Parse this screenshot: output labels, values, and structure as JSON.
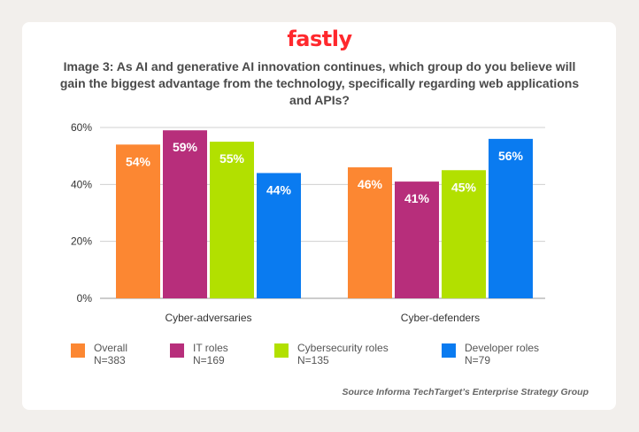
{
  "brand": "fastly",
  "colors": {
    "brand": "#ff282d",
    "overall": "#fc8732",
    "it": "#b72e7b",
    "cyber": "#b2e000",
    "developer": "#0a7bf0"
  },
  "legend": [
    {
      "name": "Overall",
      "n": "N=383"
    },
    {
      "name": "IT roles",
      "n": "N=169"
    },
    {
      "name": "Cybersecurity roles",
      "n": "N=135"
    },
    {
      "name": "Developer roles",
      "n": "N=79"
    }
  ],
  "source": "Source Informa TechTarget’s Enterprise Strategy Group",
  "chart_data": {
    "type": "bar",
    "title": "Image 3: As AI and generative AI innovation continues, which group do you believe will gain the biggest advantage from the technology, specifically regarding web applications and APIs?",
    "xlabel": "",
    "ylabel": "",
    "categories": [
      "Cyber-adversaries",
      "Cyber-defenders"
    ],
    "series": [
      {
        "name": "Overall",
        "values": [
          54,
          46
        ],
        "labels": [
          "54%",
          "46%"
        ]
      },
      {
        "name": "IT roles",
        "values": [
          59,
          41
        ],
        "labels": [
          "59%",
          "41%"
        ]
      },
      {
        "name": "Cybersecurity roles",
        "values": [
          55,
          45
        ],
        "labels": [
          "55%",
          "45%"
        ]
      },
      {
        "name": "Developer roles",
        "values": [
          44,
          56
        ],
        "labels": [
          "44%",
          "56%"
        ]
      }
    ],
    "ylim": [
      0,
      60
    ],
    "yticks": [
      "0%",
      "20%",
      "40%",
      "60%"
    ],
    "grid": true,
    "legend_position": "bottom"
  }
}
